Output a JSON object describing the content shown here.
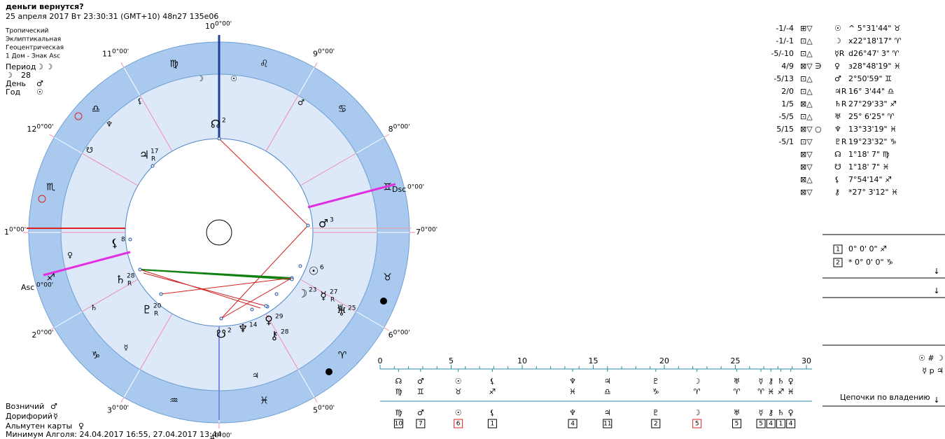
{
  "header": {
    "title": "деньги вернутся?",
    "info": "25 апреля 2017  Вт  23:30:31 (GMT+10) 48n27  135e06"
  },
  "settings": [
    "Тропический",
    "Эклиптикальная",
    "Геоцентрическая",
    "1 Дом - Знак Asc"
  ],
  "rulers": [
    {
      "label": "Период",
      "value": "☽ ☽"
    },
    {
      "label": "☽",
      "value": "28"
    },
    {
      "label": "День",
      "value": "♂"
    },
    {
      "label": "Год",
      "value": "☉"
    }
  ],
  "wheel": {
    "signs": [
      "♈",
      "♉",
      "♊",
      "♋",
      "♌",
      "♍",
      "♎",
      "♏",
      "♐",
      "♑",
      "♒",
      "♓"
    ],
    "houses": [
      {
        "num": "1",
        "deg": "0°00'"
      },
      {
        "num": "2",
        "deg": "0°00'"
      },
      {
        "num": "3",
        "deg": "0°00'"
      },
      {
        "num": "4",
        "deg": "0°00'"
      },
      {
        "num": "5",
        "deg": "0°00'"
      },
      {
        "num": "6",
        "deg": "0°00'"
      },
      {
        "num": "7",
        "deg": "0°00'"
      },
      {
        "num": "8",
        "deg": "0°00'"
      },
      {
        "num": "9",
        "deg": "0°00'"
      },
      {
        "num": "10",
        "deg": "0°00'"
      },
      {
        "num": "11",
        "deg": "0°00'"
      },
      {
        "num": "12",
        "deg": "0°00'"
      }
    ],
    "asc": {
      "label": "Asc",
      "deg": "0°00'"
    },
    "dsc": {
      "label": "Dsc",
      "deg": "0°00'"
    },
    "planets": [
      {
        "glyph": "☊",
        "deg": 2
      },
      {
        "glyph": "☋",
        "deg": 2
      },
      {
        "glyph": "♂",
        "deg": 3
      },
      {
        "glyph": "☉",
        "deg": 6
      },
      {
        "glyph": "☽",
        "deg": 23
      },
      {
        "glyph": "☿",
        "deg": 27,
        "retro": "R"
      },
      {
        "glyph": "♅",
        "deg": 25
      },
      {
        "glyph": "♀",
        "deg": 29
      },
      {
        "glyph": "⚷",
        "deg": 28
      },
      {
        "glyph": "♆",
        "deg": 14
      },
      {
        "glyph": "♇",
        "deg": 20,
        "retro": "R"
      },
      {
        "glyph": "♄",
        "deg": 28,
        "retro": "R"
      },
      {
        "glyph": "⚸",
        "deg": 8
      },
      {
        "glyph": "♃",
        "deg": 17,
        "retro": "R"
      }
    ],
    "house_glyphs": [
      "☽",
      "☉",
      "⚸",
      "♂",
      "♆",
      "☋",
      "♀",
      "♄",
      "☿",
      "♃",
      "♅"
    ]
  },
  "aspects": [
    {
      "score": "-1/-4",
      "flags": "⊞▽",
      "planet": "☉",
      "pos": "^ 5°31'44\" ♉"
    },
    {
      "score": "-1/-1",
      "flags": "⊡△",
      "planet": "☽",
      "pos": "x22°18'17\" ♈"
    },
    {
      "score": "-5/-10",
      "flags": "⊡△",
      "planet": "☿R",
      "pos": "d26°47' 3\" ♈"
    },
    {
      "score": "4/9",
      "flags": "⊠▽ ∋",
      "planet": "♀",
      "pos": "з28°48'19\" ♓"
    },
    {
      "score": "-5/13",
      "flags": "⊡△",
      "planet": "♂",
      "pos": " 2°50'59\" ♊"
    },
    {
      "score": "2/0",
      "flags": "⊡△",
      "planet": "♃R",
      "pos": "16° 3'44\" ♎"
    },
    {
      "score": "1/5",
      "flags": "⊠△",
      "planet": "♄R",
      "pos": "27°29'33\" ♐"
    },
    {
      "score": "-5/5",
      "flags": "⊡△",
      "planet": "♅",
      "pos": "25° 6'25\" ♈"
    },
    {
      "score": "5/15",
      "flags": "⊠▽ ○",
      "planet": "♆",
      "pos": "13°33'19\" ♓"
    },
    {
      "score": "-5/1",
      "flags": "⊡▽",
      "planet": "♇R",
      "pos": "19°23'32\" ♑"
    },
    {
      "flags": "⊠▽",
      "planet": "☊",
      "pos": " 1°18' 7\" ♍"
    },
    {
      "flags": "⊠▽",
      "planet": "☋",
      "pos": " 1°18' 7\" ♓"
    },
    {
      "flags": "⊠△",
      "planet": "⚸",
      "pos": " 7°54'14\" ♐"
    },
    {
      "flags": "⊠▽",
      "planet": "⚷",
      "pos": "*27° 3'12\" ♓"
    }
  ],
  "points": [
    {
      "num": "1",
      "text": "  0° 0' 0\" ♐"
    },
    {
      "num": "2",
      "text": "* 0° 0' 0\" ♑"
    }
  ],
  "receptions": [
    "☉ # ☽",
    "☿ p ♃"
  ],
  "chains_label": "Цепочки по владению",
  "arrow": "↓",
  "scale": {
    "min": 0,
    "max": 30,
    "ticks": [
      0,
      5,
      10,
      15,
      20,
      25,
      30
    ],
    "minor_ticks": [
      0,
      1,
      2,
      3,
      4,
      5,
      6,
      7,
      8,
      9,
      10,
      11,
      12,
      13,
      14,
      15,
      16,
      17,
      18,
      19,
      20,
      21,
      22,
      23,
      24,
      25,
      26,
      27,
      28,
      29,
      30
    ],
    "columns": [
      {
        "deg": 1.3,
        "top": "☊",
        "sign": "♍",
        "bottom": "♍",
        "box": "10"
      },
      {
        "deg": 2.85,
        "top": "♂",
        "sign": "♊",
        "bottom": "♂",
        "box": "7"
      },
      {
        "deg": 5.5,
        "top": "☉",
        "sign": "♉",
        "bottom": "☉",
        "box": "6",
        "color": "#e02020"
      },
      {
        "deg": 7.9,
        "top": "⚸",
        "sign": "♐",
        "bottom": "⚸",
        "box": "1"
      },
      {
        "deg": 13.55,
        "top": "♆",
        "sign": "♓",
        "bottom": "♆",
        "box": "4"
      },
      {
        "deg": 16.0,
        "top": "♃",
        "sign": "♎",
        "bottom": "♃",
        "box": "11"
      },
      {
        "deg": 19.4,
        "top": "♇",
        "sign": "♑",
        "bottom": "♇",
        "box": "2"
      },
      {
        "deg": 22.3,
        "top": "☽",
        "sign": "♈",
        "bottom": "☽",
        "box": "5",
        "color": "#e02020"
      },
      {
        "deg": 25.1,
        "top": "♅",
        "sign": "♈",
        "bottom": "♅",
        "box": "5"
      },
      {
        "deg": 26.8,
        "top": "☿",
        "sign": "♈",
        "bottom": "☿",
        "box": "5"
      },
      {
        "deg": 27.5,
        "top": "⚷",
        "sign": "♓",
        "bottom": "⚷",
        "box": "4"
      },
      {
        "deg": 28.2,
        "top": "♄",
        "sign": "♐",
        "bottom": "♄",
        "box": "1"
      },
      {
        "deg": 28.9,
        "top": "♀",
        "sign": "♓",
        "bottom": "♀",
        "box": "4"
      }
    ]
  },
  "footer": [
    {
      "label": "Возничий",
      "value": "♂"
    },
    {
      "label": "Дорифорий",
      "value": "☿"
    },
    {
      "label": "Альмутен карты",
      "value": "♀"
    }
  ],
  "algol": "Минимум Алголя: 24.04.2017 16:55,  27.04.2017 13:44"
}
